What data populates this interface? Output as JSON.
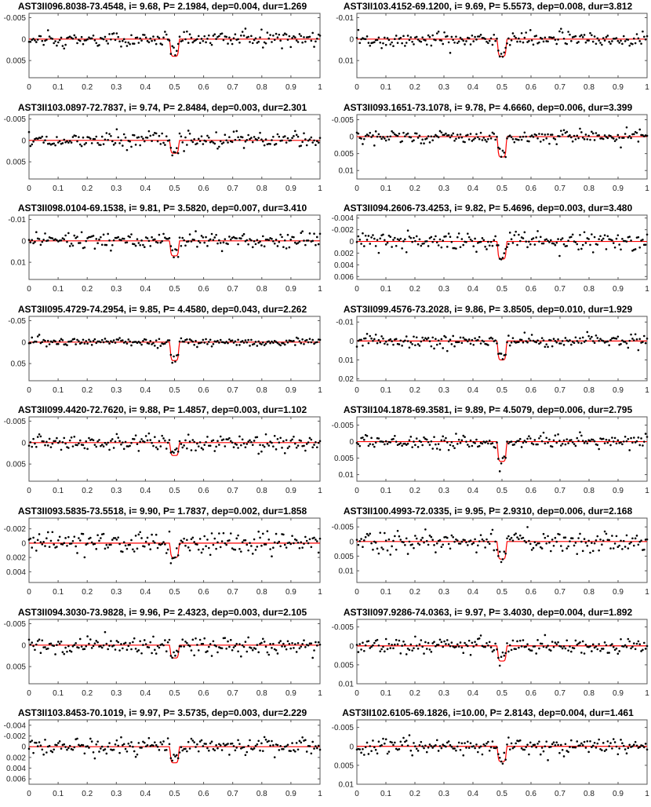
{
  "chart_data": [
    {
      "type": "scatter",
      "title": "AST3II096.8038-73.4548, i= 9.68, P= 2.1984, dep=0.004, dur=1.269",
      "depth": 0.004,
      "noise": 0.0009,
      "seed": 11,
      "xlim": [
        0,
        1
      ],
      "xticks": [
        0,
        0.1,
        0.2,
        0.3,
        0.4,
        0.5,
        0.6,
        0.7,
        0.8,
        0.9,
        1
      ],
      "yticks": [
        -0.005,
        0,
        0.005
      ],
      "ylim": [
        -0.006,
        0.009
      ],
      "yreversed": true
    },
    {
      "type": "scatter",
      "title": "AST3II103.4152-69.1200, i= 9.69, P= 5.5573, dep=0.008, dur=3.812",
      "depth": 0.008,
      "noise": 0.0017,
      "seed": 12,
      "xlim": [
        0,
        1
      ],
      "xticks": [
        0,
        0.1,
        0.2,
        0.3,
        0.4,
        0.5,
        0.6,
        0.7,
        0.8,
        0.9,
        1
      ],
      "yticks": [
        -0.01,
        0,
        0.01
      ],
      "ylim": [
        -0.012,
        0.018
      ],
      "yreversed": true
    },
    {
      "type": "scatter",
      "title": "AST3II103.0897-72.7837, i= 9.74, P= 2.8484, dep=0.003, dur=2.301",
      "depth": 0.003,
      "noise": 0.0009,
      "seed": 13,
      "xlim": [
        0,
        1
      ],
      "xticks": [
        0,
        0.1,
        0.2,
        0.3,
        0.4,
        0.5,
        0.6,
        0.7,
        0.8,
        0.9,
        1
      ],
      "yticks": [
        -0.005,
        0,
        0.005
      ],
      "ylim": [
        -0.006,
        0.009
      ],
      "yreversed": true
    },
    {
      "type": "scatter",
      "title": "AST3II093.1651-73.1078, i= 9.78, P= 4.6660, dep=0.006, dur=3.399",
      "depth": 0.006,
      "noise": 0.001,
      "seed": 14,
      "xlim": [
        0,
        1
      ],
      "xticks": [
        0,
        0.1,
        0.2,
        0.3,
        0.4,
        0.5,
        0.6,
        0.7,
        0.8,
        0.9,
        1
      ],
      "yticks": [
        -0.005,
        0,
        0.005,
        0.01
      ],
      "ylim": [
        -0.0065,
        0.0125
      ],
      "yreversed": true
    },
    {
      "type": "scatter",
      "title": "AST3II098.0104-69.1538, i= 9.81, P= 3.5820, dep=0.007, dur=3.410",
      "depth": 0.007,
      "noise": 0.0017,
      "seed": 15,
      "xlim": [
        0,
        1
      ],
      "xticks": [
        0,
        0.1,
        0.2,
        0.3,
        0.4,
        0.5,
        0.6,
        0.7,
        0.8,
        0.9,
        1
      ],
      "yticks": [
        -0.01,
        0,
        0.01
      ],
      "ylim": [
        -0.012,
        0.018
      ],
      "yreversed": true
    },
    {
      "type": "scatter",
      "title": "AST3II094.2606-73.4253, i= 9.82, P= 5.4696, dep=0.003, dur=3.480",
      "depth": 0.003,
      "noise": 0.0008,
      "seed": 16,
      "xlim": [
        0,
        1
      ],
      "xticks": [
        0,
        0.1,
        0.2,
        0.3,
        0.4,
        0.5,
        0.6,
        0.7,
        0.8,
        0.9,
        1
      ],
      "yticks": [
        -0.004,
        -0.002,
        0,
        0.002,
        0.004,
        0.006
      ],
      "ylim": [
        -0.0045,
        0.0065
      ],
      "yreversed": true
    },
    {
      "type": "scatter",
      "title": "AST3II095.4729-74.2954, i= 9.85, P= 4.4580, dep=0.043, dur=2.262",
      "depth": 0.043,
      "noise": 0.005,
      "seed": 17,
      "xlim": [
        0,
        1
      ],
      "xticks": [
        0,
        0.1,
        0.2,
        0.3,
        0.4,
        0.5,
        0.6,
        0.7,
        0.8,
        0.9,
        1
      ],
      "yticks": [
        -0.05,
        0,
        0.05
      ],
      "ylim": [
        -0.06,
        0.09
      ],
      "yreversed": true
    },
    {
      "type": "scatter",
      "title": "AST3II099.4576-73.2028, i= 9.86, P= 3.8505, dep=0.010, dur=1.929",
      "depth": 0.01,
      "noise": 0.0017,
      "seed": 18,
      "xlim": [
        0,
        1
      ],
      "xticks": [
        0,
        0.1,
        0.2,
        0.3,
        0.4,
        0.5,
        0.6,
        0.7,
        0.8,
        0.9,
        1
      ],
      "yticks": [
        -0.01,
        0,
        0.01,
        0.02
      ],
      "ylim": [
        -0.013,
        0.021
      ],
      "yreversed": true
    },
    {
      "type": "scatter",
      "title": "AST3II099.4420-72.7620, i= 9.88, P= 1.4857, dep=0.003, dur=1.102",
      "depth": 0.003,
      "noise": 0.001,
      "seed": 19,
      "xlim": [
        0,
        1
      ],
      "xticks": [
        0,
        0.1,
        0.2,
        0.3,
        0.4,
        0.5,
        0.6,
        0.7,
        0.8,
        0.9,
        1
      ],
      "yticks": [
        -0.005,
        0,
        0.005
      ],
      "ylim": [
        -0.006,
        0.009
      ],
      "yreversed": true
    },
    {
      "type": "scatter",
      "title": "AST3II104.1878-69.3581, i= 9.89, P= 4.5079, dep=0.006, dur=2.795",
      "depth": 0.006,
      "noise": 0.001,
      "seed": 20,
      "xlim": [
        0,
        1
      ],
      "xticks": [
        0,
        0.1,
        0.2,
        0.3,
        0.4,
        0.5,
        0.6,
        0.7,
        0.8,
        0.9,
        1
      ],
      "yticks": [
        -0.005,
        0,
        0.005,
        0.01
      ],
      "ylim": [
        -0.0075,
        0.012
      ],
      "yreversed": true
    },
    {
      "type": "scatter",
      "title": "AST3II093.5835-73.5518, i= 9.90, P= 1.7837, dep=0.002, dur=1.858",
      "depth": 0.002,
      "noise": 0.0008,
      "seed": 21,
      "xlim": [
        0,
        1
      ],
      "xticks": [
        0,
        0.1,
        0.2,
        0.3,
        0.4,
        0.5,
        0.6,
        0.7,
        0.8,
        0.9,
        1
      ],
      "yticks": [
        -0.002,
        0,
        0.002,
        0.004
      ],
      "ylim": [
        -0.0035,
        0.0055
      ],
      "yreversed": true
    },
    {
      "type": "scatter",
      "title": "AST3II100.4993-72.0335, i= 9.95, P= 2.9310, dep=0.006, dur=2.168",
      "depth": 0.006,
      "noise": 0.0018,
      "seed": 22,
      "xlim": [
        0,
        1
      ],
      "xticks": [
        0,
        0.1,
        0.2,
        0.3,
        0.4,
        0.5,
        0.6,
        0.7,
        0.8,
        0.9,
        1
      ],
      "yticks": [
        -0.005,
        0,
        0.005,
        0.01
      ],
      "ylim": [
        -0.008,
        0.014
      ],
      "yreversed": true
    },
    {
      "type": "scatter",
      "title": "AST3II094.3030-73.9828, i= 9.96, P= 2.4323, dep=0.003, dur=2.105",
      "depth": 0.003,
      "noise": 0.001,
      "seed": 23,
      "xlim": [
        0,
        1
      ],
      "xticks": [
        0,
        0.1,
        0.2,
        0.3,
        0.4,
        0.5,
        0.6,
        0.7,
        0.8,
        0.9,
        1
      ],
      "yticks": [
        -0.005,
        0,
        0.005
      ],
      "ylim": [
        -0.006,
        0.009
      ],
      "yreversed": true
    },
    {
      "type": "scatter",
      "title": "AST3II097.9286-74.0363, i= 9.97, P= 3.4030, dep=0.004, dur=1.892",
      "depth": 0.004,
      "noise": 0.001,
      "seed": 24,
      "xlim": [
        0,
        1
      ],
      "xticks": [
        0,
        0.1,
        0.2,
        0.3,
        0.4,
        0.5,
        0.6,
        0.7,
        0.8,
        0.9,
        1
      ],
      "yticks": [
        -0.005,
        0,
        0.005,
        0.01
      ],
      "ylim": [
        -0.007,
        0.01
      ],
      "yreversed": true
    },
    {
      "type": "scatter",
      "title": "AST3II103.8453-70.1019, i= 9.97, P= 3.5735, dep=0.003, dur=2.229",
      "depth": 0.003,
      "noise": 0.0008,
      "seed": 25,
      "xlim": [
        0,
        1
      ],
      "xticks": [
        0,
        0.1,
        0.2,
        0.3,
        0.4,
        0.5,
        0.6,
        0.7,
        0.8,
        0.9,
        1
      ],
      "yticks": [
        -0.004,
        -0.002,
        0,
        0.002,
        0.004,
        0.006
      ],
      "ylim": [
        -0.005,
        0.007
      ],
      "yreversed": true
    },
    {
      "type": "scatter",
      "title": "AST3II102.6105-69.1826, i=10.00, P= 2.8143, dep=0.004, dur=1.461",
      "depth": 0.004,
      "noise": 0.0011,
      "seed": 26,
      "xlim": [
        0,
        1
      ],
      "xticks": [
        0,
        0.1,
        0.2,
        0.3,
        0.4,
        0.5,
        0.6,
        0.7,
        0.8,
        0.9,
        1
      ],
      "yticks": [
        -0.005,
        0,
        0.005,
        0.01
      ],
      "ylim": [
        -0.007,
        0.01
      ],
      "yreversed": true
    }
  ],
  "colors": {
    "model": "#ff0000",
    "points": "#000000",
    "axis": "#555555"
  }
}
